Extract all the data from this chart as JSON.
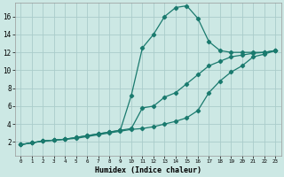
{
  "xlabel": "Humidex (Indice chaleur)",
  "bg_color": "#cce8e4",
  "grid_color": "#aaccca",
  "line_color": "#1a7a6e",
  "xlim": [
    -0.5,
    23.5
  ],
  "ylim": [
    0.5,
    17.5
  ],
  "xticks": [
    0,
    1,
    2,
    3,
    4,
    5,
    6,
    7,
    8,
    9,
    10,
    11,
    12,
    13,
    14,
    15,
    16,
    17,
    18,
    19,
    20,
    21,
    22,
    23
  ],
  "yticks": [
    2,
    4,
    6,
    8,
    10,
    12,
    14,
    16
  ],
  "line1_x": [
    0,
    1,
    2,
    3,
    4,
    5,
    6,
    7,
    8,
    9,
    10,
    11,
    12,
    13,
    14,
    15,
    16,
    17,
    18,
    19,
    20,
    21,
    22,
    23
  ],
  "line1_y": [
    1.7,
    1.9,
    2.1,
    2.2,
    2.3,
    2.5,
    2.7,
    2.9,
    3.1,
    3.3,
    7.2,
    12.5,
    14.0,
    16.0,
    17.0,
    17.2,
    15.8,
    13.2,
    12.2,
    12.0,
    12.0,
    12.0,
    12.0,
    12.2
  ],
  "line2_x": [
    0,
    1,
    2,
    3,
    4,
    5,
    6,
    7,
    8,
    9,
    10,
    11,
    12,
    13,
    14,
    15,
    16,
    17,
    18,
    19,
    20,
    21,
    22,
    23
  ],
  "line2_y": [
    1.7,
    1.9,
    2.1,
    2.2,
    2.3,
    2.5,
    2.7,
    2.9,
    3.1,
    3.3,
    3.5,
    5.8,
    6.0,
    7.0,
    7.5,
    8.5,
    9.5,
    10.5,
    11.0,
    11.5,
    11.7,
    11.9,
    12.0,
    12.2
  ],
  "line3_x": [
    0,
    1,
    2,
    3,
    4,
    5,
    6,
    7,
    8,
    9,
    10,
    11,
    12,
    13,
    14,
    15,
    16,
    17,
    18,
    19,
    20,
    21,
    22,
    23
  ],
  "line3_y": [
    1.7,
    1.9,
    2.1,
    2.2,
    2.3,
    2.4,
    2.6,
    2.8,
    3.0,
    3.2,
    3.4,
    3.5,
    3.7,
    4.0,
    4.3,
    4.7,
    5.5,
    7.5,
    8.8,
    9.8,
    10.5,
    11.5,
    11.8,
    12.2
  ]
}
